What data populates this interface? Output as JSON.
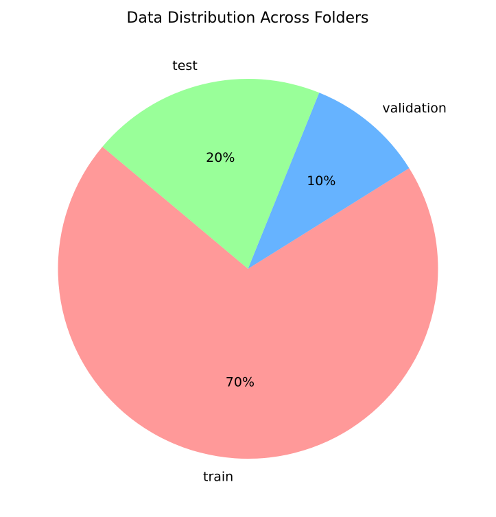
{
  "chart_data": {
    "type": "pie",
    "title": "Data Distribution Across Folders",
    "start_angle": 140,
    "direction": "counterclockwise",
    "slices": [
      {
        "label": "train",
        "value": 70,
        "pct_label": "70%",
        "color": "#ff9999"
      },
      {
        "label": "validation",
        "value": 10,
        "pct_label": "10%",
        "color": "#66b3ff"
      },
      {
        "label": "test",
        "value": 20,
        "pct_label": "20%",
        "color": "#99ff99"
      }
    ]
  }
}
